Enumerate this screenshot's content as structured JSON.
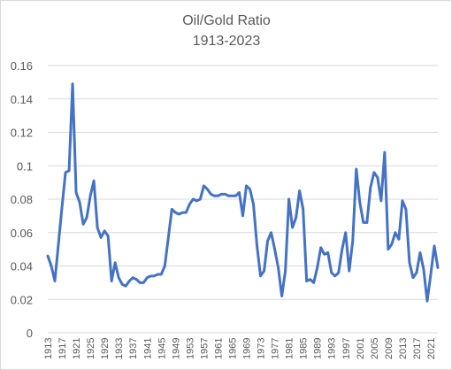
{
  "chart_data": {
    "type": "line",
    "title": "Oil/Gold Ratio",
    "subtitle": "1913-2023",
    "xlabel": "",
    "ylabel": "",
    "ylim": [
      0,
      0.16
    ],
    "yticks": [
      "0",
      "0.02",
      "0.04",
      "0.06",
      "0.08",
      "0.1",
      "0.12",
      "0.14",
      "0.16"
    ],
    "grid": true,
    "legend": "none",
    "x": [
      1913,
      1914,
      1915,
      1916,
      1917,
      1918,
      1919,
      1920,
      1921,
      1922,
      1923,
      1924,
      1925,
      1926,
      1927,
      1928,
      1929,
      1930,
      1931,
      1932,
      1933,
      1934,
      1935,
      1936,
      1937,
      1938,
      1939,
      1940,
      1941,
      1942,
      1943,
      1944,
      1945,
      1946,
      1947,
      1948,
      1949,
      1950,
      1951,
      1952,
      1953,
      1954,
      1955,
      1956,
      1957,
      1958,
      1959,
      1960,
      1961,
      1962,
      1963,
      1964,
      1965,
      1966,
      1967,
      1968,
      1969,
      1970,
      1971,
      1972,
      1973,
      1974,
      1975,
      1976,
      1977,
      1978,
      1979,
      1980,
      1981,
      1982,
      1983,
      1984,
      1985,
      1986,
      1987,
      1988,
      1989,
      1990,
      1991,
      1992,
      1993,
      1994,
      1995,
      1996,
      1997,
      1998,
      1999,
      2000,
      2001,
      2002,
      2003,
      2004,
      2005,
      2006,
      2007,
      2008,
      2009,
      2010,
      2011,
      2012,
      2013,
      2014,
      2015,
      2016,
      2017,
      2018,
      2019,
      2020,
      2021,
      2022,
      2023
    ],
    "xticks": [
      1913,
      1917,
      1921,
      1925,
      1929,
      1933,
      1937,
      1941,
      1945,
      1949,
      1953,
      1957,
      1961,
      1965,
      1969,
      1973,
      1977,
      1981,
      1985,
      1989,
      1993,
      1997,
      2001,
      2005,
      2009,
      2013,
      2017,
      2021
    ],
    "series": [
      {
        "name": "",
        "color": "#4472c4",
        "values": [
          0.046,
          0.04,
          0.031,
          0.053,
          0.075,
          0.096,
          0.097,
          0.149,
          0.084,
          0.078,
          0.065,
          0.069,
          0.082,
          0.091,
          0.063,
          0.057,
          0.061,
          0.058,
          0.031,
          0.042,
          0.033,
          0.029,
          0.028,
          0.031,
          0.033,
          0.032,
          0.03,
          0.03,
          0.033,
          0.034,
          0.034,
          0.035,
          0.035,
          0.04,
          0.057,
          0.074,
          0.072,
          0.071,
          0.072,
          0.072,
          0.077,
          0.08,
          0.079,
          0.08,
          0.088,
          0.086,
          0.083,
          0.082,
          0.082,
          0.083,
          0.083,
          0.082,
          0.082,
          0.082,
          0.084,
          0.07,
          0.088,
          0.086,
          0.077,
          0.052,
          0.034,
          0.037,
          0.055,
          0.06,
          0.05,
          0.039,
          0.022,
          0.037,
          0.08,
          0.063,
          0.069,
          0.085,
          0.074,
          0.031,
          0.032,
          0.03,
          0.039,
          0.051,
          0.047,
          0.048,
          0.036,
          0.034,
          0.036,
          0.05,
          0.06,
          0.037,
          0.055,
          0.098,
          0.078,
          0.066,
          0.066,
          0.087,
          0.096,
          0.093,
          0.079,
          0.108,
          0.05,
          0.053,
          0.06,
          0.056,
          0.079,
          0.074,
          0.042,
          0.033,
          0.036,
          0.048,
          0.038,
          0.019,
          0.035,
          0.052,
          0.039
        ]
      }
    ]
  }
}
